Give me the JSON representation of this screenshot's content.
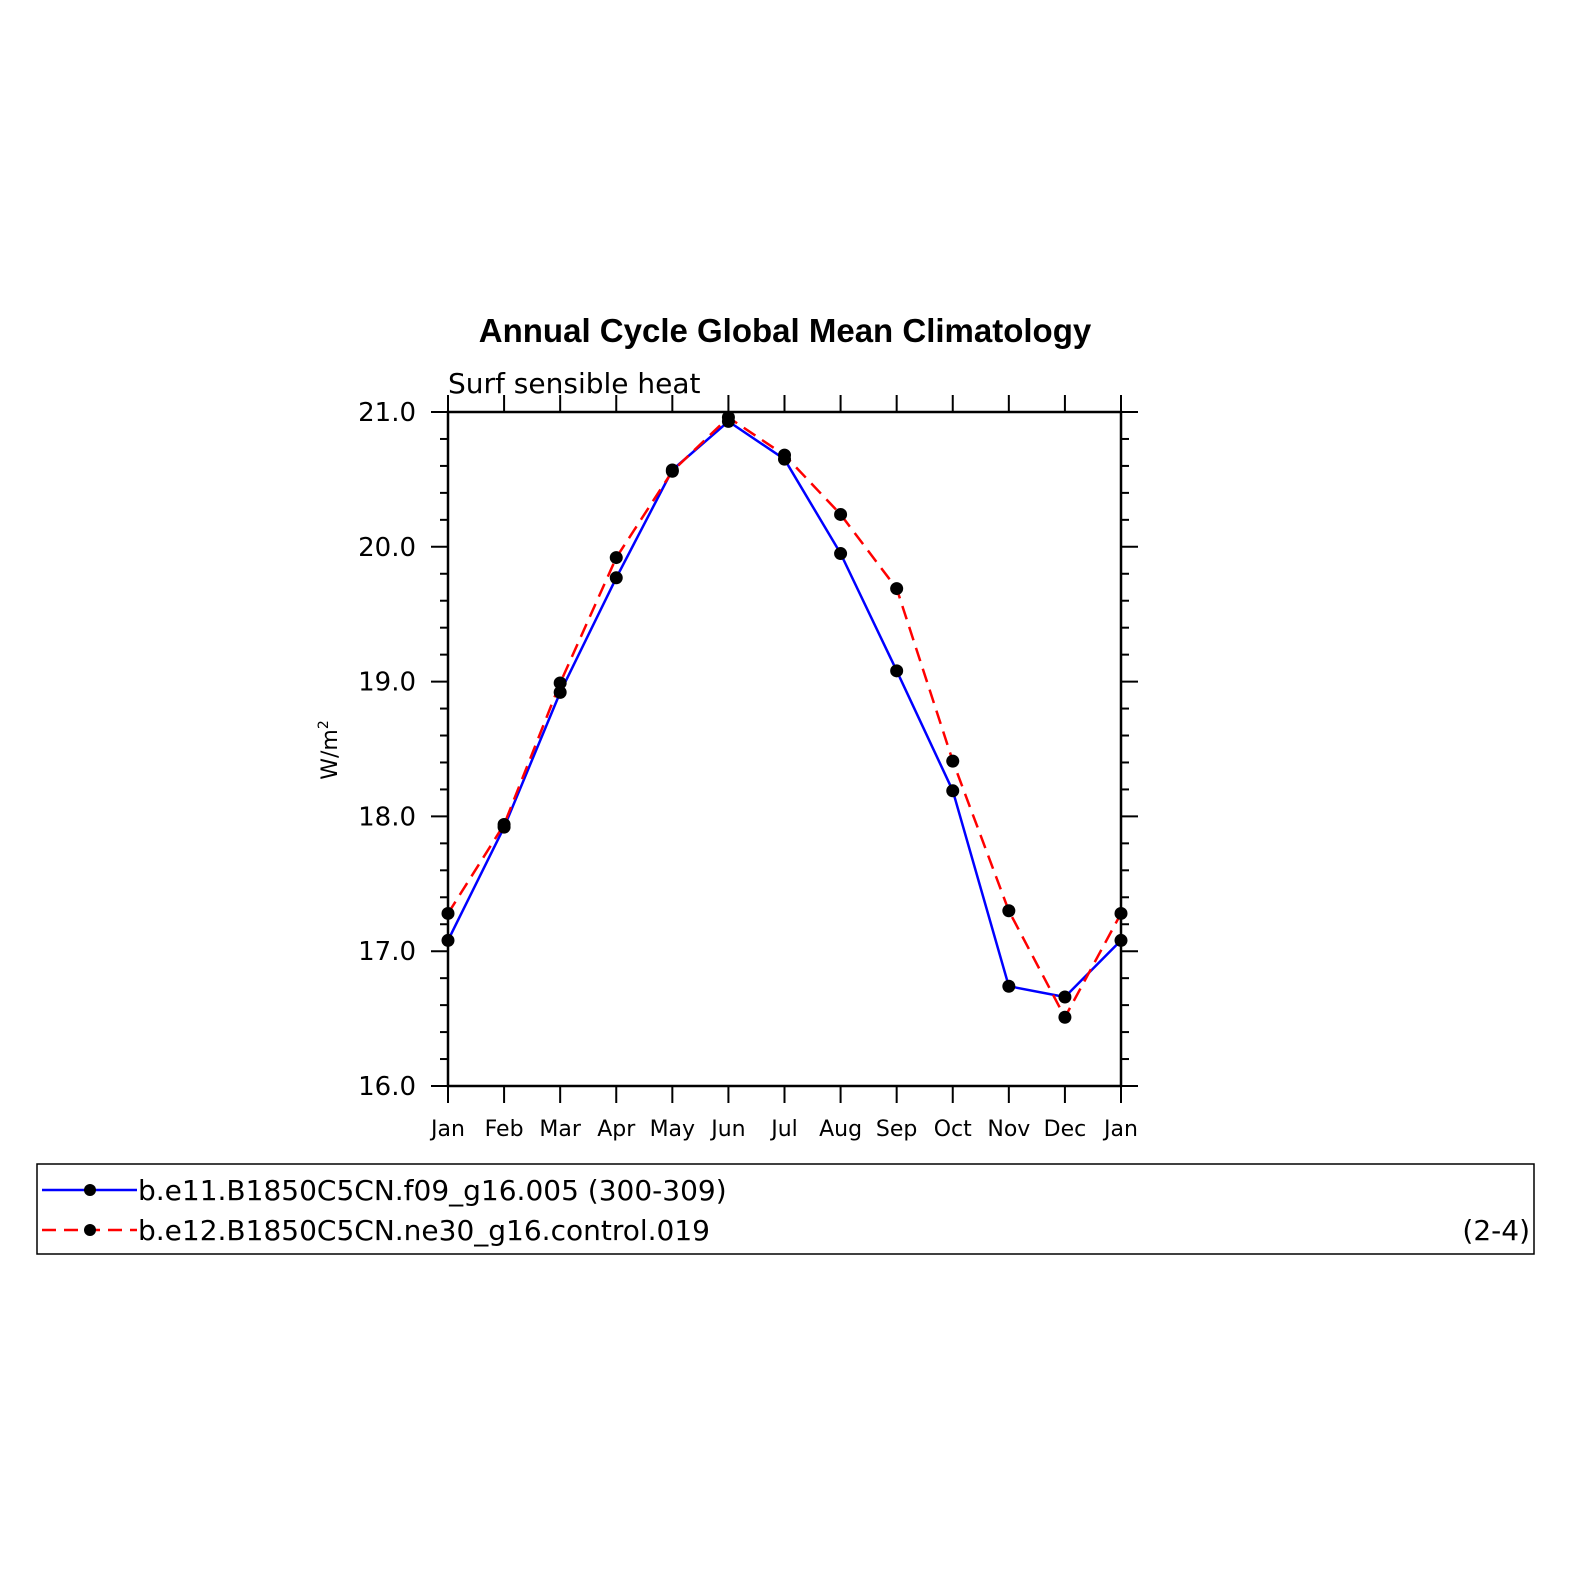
{
  "chart_data": {
    "type": "line",
    "title": "Annual Cycle Global Mean Climatology",
    "subtitle": "Surf sensible heat",
    "ylabel": "W/m",
    "ylabel_sup": "2",
    "xlabel": "",
    "categories": [
      "Jan",
      "Feb",
      "Mar",
      "Apr",
      "May",
      "Jun",
      "Jul",
      "Aug",
      "Sep",
      "Oct",
      "Nov",
      "Dec",
      "Jan"
    ],
    "ylim": [
      16.0,
      21.0
    ],
    "yticks": [
      "16.0",
      "17.0",
      "18.0",
      "19.0",
      "20.0",
      "21.0"
    ],
    "series": [
      {
        "name": "b.e11.B1850C5CN.f09_g16.005 (300-309)",
        "color": "#0000ff",
        "dash": "solid",
        "values": [
          17.08,
          17.92,
          18.92,
          19.77,
          20.57,
          20.93,
          20.65,
          19.95,
          19.08,
          18.19,
          16.74,
          16.66,
          17.08
        ]
      },
      {
        "name": "b.e12.B1850C5CN.ne30_g16.control.019",
        "color": "#ff0000",
        "dash": "dashed",
        "values": [
          17.28,
          17.94,
          18.99,
          19.92,
          20.56,
          20.96,
          20.68,
          20.24,
          19.69,
          18.41,
          17.3,
          16.51,
          17.28
        ]
      }
    ],
    "legend_extra": "(2-4)",
    "legend_position": "bottom",
    "grid": false
  }
}
